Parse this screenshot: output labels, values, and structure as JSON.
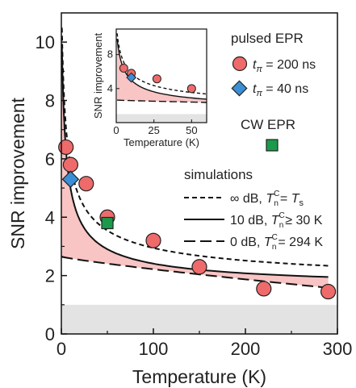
{
  "chart_data": [
    {
      "type": "scatter",
      "xlabel": "Temperature (K)",
      "ylabel": "SNR improvement",
      "xlim": [
        0,
        300
      ],
      "ylim": [
        0,
        11
      ],
      "xticks": [
        "0",
        "100",
        "200",
        "300"
      ],
      "yticks": [
        "0",
        "2",
        "4",
        "6",
        "8",
        "10"
      ],
      "shaded_band": {
        "y_from": 0,
        "y_to": 1,
        "color": "#e3e3e3"
      },
      "series": [
        {
          "name": "t_π = 200 ns",
          "group": "pulsed EPR",
          "marker": "circle",
          "color": "#ef6b6b",
          "x": [
            5,
            10,
            27,
            50,
            100,
            150,
            220,
            290
          ],
          "y": [
            6.4,
            5.8,
            5.15,
            4.0,
            3.2,
            2.3,
            1.55,
            1.45
          ]
        },
        {
          "name": "t_π = 40 ns",
          "group": "pulsed EPR",
          "marker": "diamond",
          "color": "#3b8fd6",
          "x": [
            10
          ],
          "y": [
            5.3
          ]
        },
        {
          "name": "CW EPR",
          "group": "CW EPR",
          "marker": "square",
          "color": "#1a9a4a",
          "x": [
            50
          ],
          "y": [
            3.8
          ]
        }
      ],
      "simulations": [
        {
          "label": "∞ dB, T_n^C = T_s",
          "style": "short-dash"
        },
        {
          "label": "10 dB, T_n^C ≥ 30 K",
          "style": "solid"
        },
        {
          "label": "0 dB, T_n^C = 294 K",
          "style": "long-dash"
        }
      ],
      "fill_between": {
        "color": "#f8c4c4",
        "upper": "10 dB",
        "lower": "0 dB"
      }
    },
    {
      "type": "scatter",
      "inset": true,
      "xlabel": "Temperature (K)",
      "ylabel": "SNR improvement",
      "xlim": [
        0,
        60
      ],
      "ylim": [
        0,
        11
      ],
      "xticks": [
        "0",
        "25",
        "50"
      ],
      "yticks": [
        "4",
        "8"
      ],
      "series": [
        {
          "name": "t_π = 200 ns",
          "marker": "circle",
          "x": [
            5,
            10,
            27,
            50
          ],
          "y": [
            6.4,
            5.8,
            5.15,
            4.0
          ]
        },
        {
          "name": "t_π = 40 ns",
          "marker": "diamond",
          "x": [
            10
          ],
          "y": [
            5.3
          ]
        }
      ]
    }
  ],
  "legend": {
    "pulsed_header": "pulsed EPR",
    "pulsed_200": {
      "t": "t",
      "sub": "π",
      "rest": " = 200 ns"
    },
    "pulsed_40": {
      "t": "t",
      "sub": "π",
      "rest": " = 40 ns"
    },
    "cw_header": "CW EPR",
    "sim_header": "simulations",
    "sim_inf": {
      "a": "∞ dB, ",
      "T": "T",
      "sup": "C",
      "sub": "n",
      "b": "= ",
      "T2": "T",
      "sub2": "s"
    },
    "sim_10": {
      "a": "10 dB, ",
      "T": "T",
      "sup": "C",
      "sub": "n",
      "b": "≥ 30 K"
    },
    "sim_0": {
      "a": "0  dB, ",
      "T": "T",
      "sup": "C",
      "sub": "n",
      "b": "= 294 K"
    }
  },
  "colors": {
    "circle": "#ef6b6b",
    "diamond": "#3b8fd6",
    "square": "#1a9a4a",
    "fill": "#f8c4c4",
    "band": "#e3e3e3"
  }
}
